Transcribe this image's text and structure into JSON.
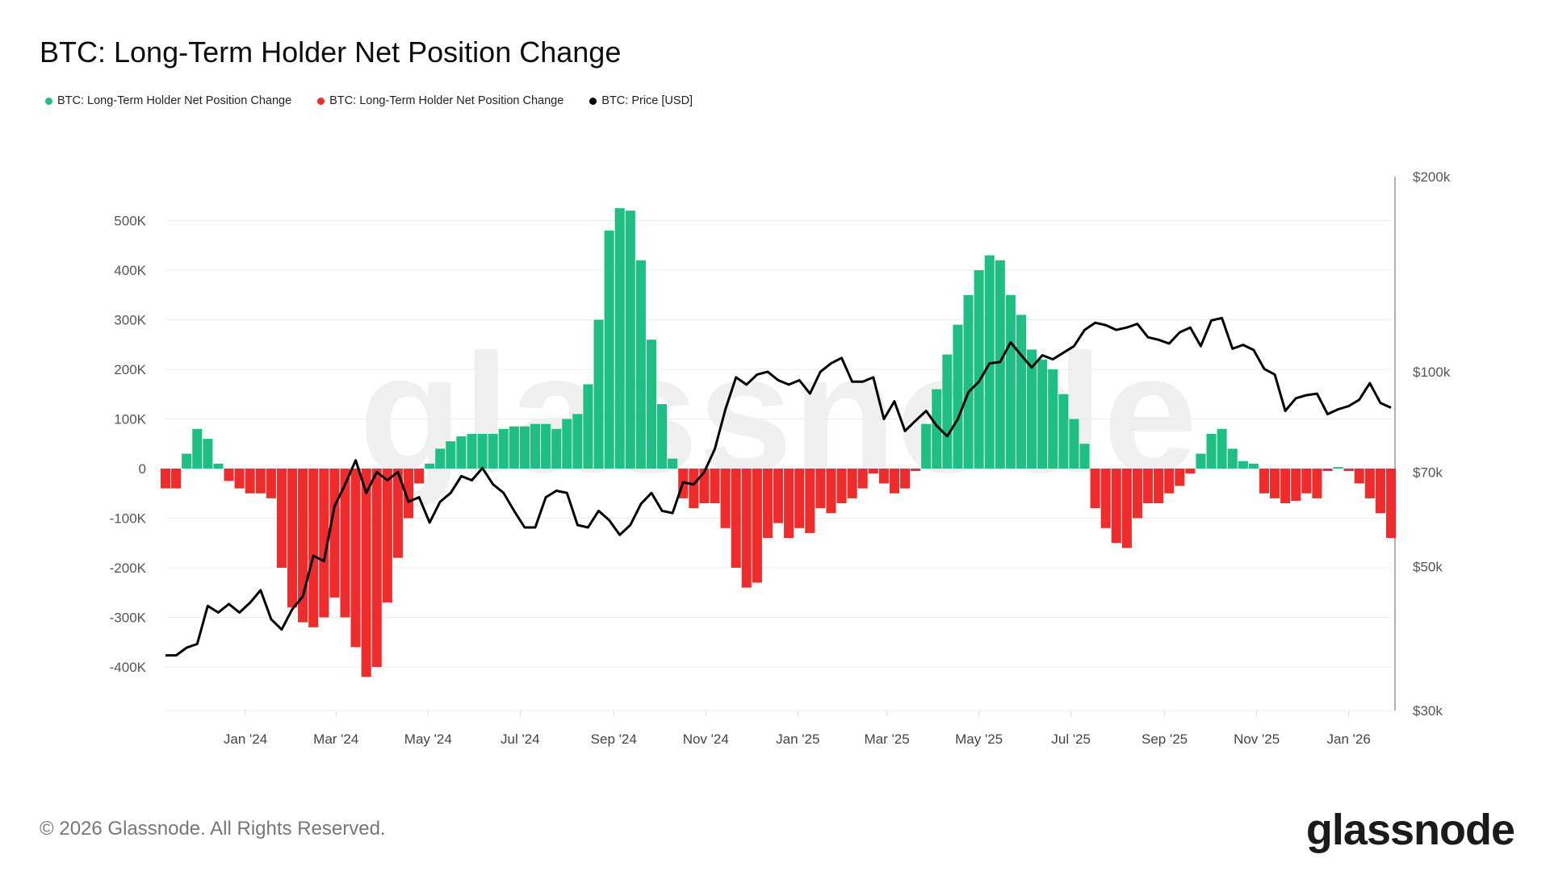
{
  "title": "BTC: Long-Term Holder Net Position Change",
  "legend": [
    {
      "label": "BTC: Long-Term Holder Net Position Change",
      "color": "#1fbf84"
    },
    {
      "label": "BTC: Long-Term Holder Net Position Change",
      "color": "#ef2b2b"
    },
    {
      "label": "BTC: Price [USD]",
      "color": "#000000"
    }
  ],
  "footer": "© 2026 Glassnode. All Rights Reserved.",
  "logo": "glassnode",
  "watermark": "glassnode",
  "chart_data": {
    "type": "bar+line",
    "title": "BTC: Long-Term Holder Net Position Change",
    "grid": true,
    "legend_placement": "top-left",
    "left_axis": {
      "ticks": [
        500000,
        400000,
        300000,
        200000,
        100000,
        0,
        -100000,
        -200000,
        -300000,
        -400000
      ],
      "tick_labels": [
        "500K",
        "400K",
        "300K",
        "200K",
        "100K",
        "0",
        "-100K",
        "-200K",
        "-300K",
        "-400K"
      ],
      "range": [
        -490000,
        600000
      ]
    },
    "right_axis": {
      "scale": "log",
      "ticks": [
        200000,
        100000,
        70000,
        50000,
        30000
      ],
      "tick_labels": [
        "$200k",
        "$100k",
        "$70k",
        "$50k",
        "$30k"
      ],
      "range": [
        30000,
        200000
      ]
    },
    "x_axis": {
      "range": [
        "2023-11-09",
        "2026-01-29"
      ],
      "ticks": [
        "2024-01-01",
        "2024-03-01",
        "2024-05-01",
        "2024-07-01",
        "2024-09-01",
        "2024-11-01",
        "2025-01-01",
        "2025-03-01",
        "2025-05-01",
        "2025-07-01",
        "2025-09-01",
        "2025-11-01",
        "2026-01-01"
      ],
      "tick_labels": [
        "Jan '24",
        "Mar '24",
        "May '24",
        "Jul '24",
        "Sep '24",
        "Nov '24",
        "Jan '25",
        "Mar '25",
        "May '25",
        "Jul '25",
        "Sep '25",
        "Nov '25",
        "Jan '26"
      ]
    },
    "colors": {
      "positive": "#1fbf84",
      "negative": "#ef2b2b",
      "price": "#000000"
    },
    "dates": [
      "2023-11-09",
      "2023-11-16",
      "2023-11-23",
      "2023-11-30",
      "2023-12-07",
      "2023-12-14",
      "2023-12-21",
      "2023-12-28",
      "2024-01-04",
      "2024-01-11",
      "2024-01-18",
      "2024-01-25",
      "2024-02-01",
      "2024-02-08",
      "2024-02-15",
      "2024-02-22",
      "2024-02-29",
      "2024-03-07",
      "2024-03-14",
      "2024-03-21",
      "2024-03-28",
      "2024-04-04",
      "2024-04-11",
      "2024-04-18",
      "2024-04-25",
      "2024-05-02",
      "2024-05-09",
      "2024-05-16",
      "2024-05-23",
      "2024-05-30",
      "2024-06-06",
      "2024-06-13",
      "2024-06-20",
      "2024-06-27",
      "2024-07-04",
      "2024-07-11",
      "2024-07-18",
      "2024-07-25",
      "2024-08-01",
      "2024-08-08",
      "2024-08-15",
      "2024-08-22",
      "2024-08-29",
      "2024-09-05",
      "2024-09-12",
      "2024-09-19",
      "2024-09-26",
      "2024-10-03",
      "2024-10-10",
      "2024-10-17",
      "2024-10-24",
      "2024-10-31",
      "2024-11-07",
      "2024-11-14",
      "2024-11-21",
      "2024-11-28",
      "2024-12-05",
      "2024-12-12",
      "2024-12-19",
      "2024-12-26",
      "2025-01-02",
      "2025-01-09",
      "2025-01-16",
      "2025-01-23",
      "2025-01-30",
      "2025-02-06",
      "2025-02-13",
      "2025-02-20",
      "2025-02-27",
      "2025-03-06",
      "2025-03-13",
      "2025-03-20",
      "2025-03-27",
      "2025-04-03",
      "2025-04-10",
      "2025-04-17",
      "2025-04-24",
      "2025-05-01",
      "2025-05-08",
      "2025-05-15",
      "2025-05-22",
      "2025-05-29",
      "2025-06-05",
      "2025-06-12",
      "2025-06-19",
      "2025-06-26",
      "2025-07-03",
      "2025-07-10",
      "2025-07-17",
      "2025-07-24",
      "2025-07-31",
      "2025-08-07",
      "2025-08-14",
      "2025-08-21",
      "2025-08-28",
      "2025-09-04",
      "2025-09-11",
      "2025-09-18",
      "2025-09-25",
      "2025-10-02",
      "2025-10-09",
      "2025-10-16",
      "2025-10-23",
      "2025-10-30",
      "2025-11-06",
      "2025-11-13",
      "2025-11-20",
      "2025-11-27",
      "2025-12-04",
      "2025-12-11",
      "2025-12-18",
      "2025-12-25",
      "2026-01-01",
      "2026-01-08",
      "2026-01-15",
      "2026-01-22",
      "2026-01-29"
    ],
    "net_position_change": [
      -40000,
      -40000,
      30000,
      80000,
      60000,
      10000,
      -25000,
      -40000,
      -50000,
      -50000,
      -60000,
      -200000,
      -280000,
      -310000,
      -320000,
      -300000,
      -260000,
      -300000,
      -360000,
      -420000,
      -400000,
      -270000,
      -180000,
      -100000,
      -30000,
      10000,
      40000,
      55000,
      65000,
      70000,
      70000,
      70000,
      80000,
      85000,
      85000,
      90000,
      90000,
      80000,
      100000,
      110000,
      170000,
      300000,
      480000,
      525000,
      520000,
      420000,
      260000,
      130000,
      20000,
      -60000,
      -80000,
      -70000,
      -70000,
      -120000,
      -200000,
      -240000,
      -230000,
      -140000,
      -110000,
      -140000,
      -120000,
      -130000,
      -80000,
      -90000,
      -70000,
      -60000,
      -40000,
      -10000,
      -30000,
      -50000,
      -40000,
      -5000,
      90000,
      160000,
      230000,
      290000,
      350000,
      400000,
      430000,
      420000,
      350000,
      310000,
      240000,
      220000,
      200000,
      150000,
      100000,
      50000,
      -80000,
      -120000,
      -150000,
      -160000,
      -100000,
      -70000,
      -70000,
      -50000,
      -35000,
      -10000,
      30000,
      70000,
      80000,
      40000,
      15000,
      10000,
      -50000,
      -60000,
      -70000,
      -65000,
      -50000,
      -60000,
      -5000,
      3000,
      -5000,
      -30000,
      -60000,
      -90000,
      -140000
    ],
    "price_usd": [
      36500,
      36500,
      37500,
      38000,
      43500,
      42500,
      43800,
      42500,
      44000,
      46000,
      41500,
      40000,
      43000,
      45000,
      52000,
      51000,
      62000,
      67000,
      73000,
      65000,
      70000,
      68000,
      70000,
      63000,
      64000,
      58500,
      63000,
      65000,
      69000,
      68000,
      71000,
      67000,
      65000,
      61000,
      57500,
      57500,
      64000,
      65500,
      65000,
      58000,
      57500,
      61000,
      59000,
      56000,
      58000,
      62500,
      65000,
      61000,
      60500,
      67500,
      67000,
      70000,
      76000,
      87500,
      98000,
      95500,
      99000,
      100000,
      97000,
      95500,
      97000,
      92500,
      100000,
      103000,
      105000,
      96500,
      96500,
      98000,
      84500,
      90000,
      81000,
      84000,
      87000,
      82500,
      79500,
      84500,
      93000,
      96500,
      103000,
      103500,
      111000,
      106000,
      101500,
      106000,
      104500,
      107000,
      109500,
      116000,
      119000,
      118000,
      116000,
      117000,
      118500,
      113000,
      112000,
      110500,
      115000,
      117000,
      109500,
      120000,
      121000,
      108500,
      110000,
      108000,
      101000,
      99000,
      87000,
      91000,
      92000,
      92500,
      86000,
      87500,
      88500,
      90500,
      96000,
      89500,
      88000
    ]
  }
}
